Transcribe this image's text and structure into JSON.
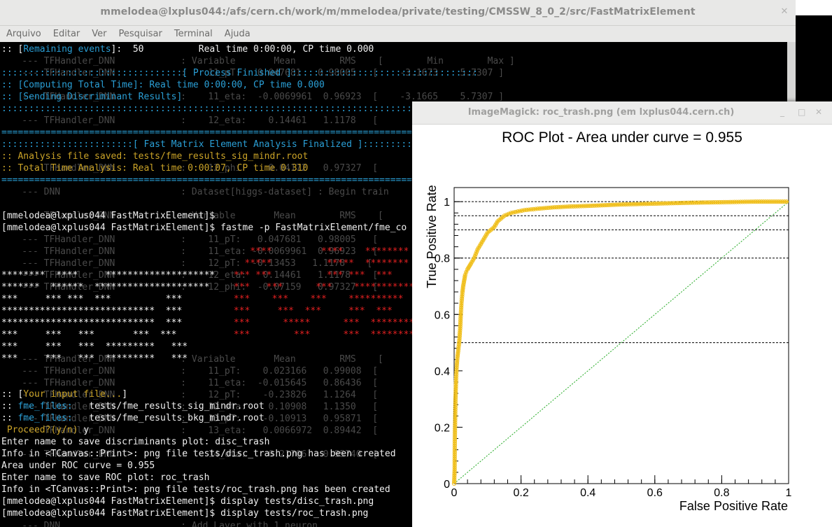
{
  "terminal": {
    "title": "mmelodea@lxplus044:/afs/cern.ch/work/m/mmelodea/private/testing/CMSSW_8_0_2/src/FastMatrixElement",
    "menu": [
      "Arquivo",
      "Editar",
      "Ver",
      "Pesquisar",
      "Terminal",
      "Ajuda"
    ],
    "lines": {
      "remaining_prefix": ":: [",
      "remaining_label": "Remaining events",
      "remaining_rest": "]:  50          Real time 0:00:00, CP time 0.000",
      "process_finished": ":::::::::::::::::::::::::::::::::[ Process Finished ]::::::::::::::::::::::::::::::::::",
      "computing": ":: [Computing Total Time]: Real time 0:00:00, CP time 0.000",
      "sending": ":: [Sending Discriminant Results]",
      "sep1": ":::::::::::::::::::::::::::::::::::::::::::::::::::::::::::::::::::::::::::::::::::::::::",
      "eq1": "=========================================================================================",
      "fme_finalized": "::::::::::::::::::::::::[ Fast Matrix Element Analysis Finalized ]:::::::::::::::::::::::",
      "analysis_saved": ":: Analysis file saved: tests/fme_results_sig_mindr.root",
      "total_time": ":: Total Time Analysis: Real time 0:00:07, CP time 0.310",
      "eq2": "=========================================================================================",
      "prompt1": "[mmelodea@lxplus044 FastMatrixElement]$",
      "prompt2": "[mmelodea@lxplus044 FastMatrixElement]$ fastme -p FastMatrixElement/fme_co",
      "input_prefix": ":: [",
      "input_label": "Your input file...",
      "input_suffix": "]",
      "fme_files_label": "fme_files:",
      "fme_file1": "   tests/fme_results_sig_mindr.root",
      "fme_file2": "   tests/fme_results_bkg_mindr.root",
      "proceed_label": " Proceed?(y/n)",
      "proceed_answer": " y",
      "enter_disc": "Enter name to save discriminants plot: disc_trash",
      "info_disc": "Info in <TCanvas::Print>: png file tests/disc_trash.png has been created",
      "area": "Area under ROC curve = 0.955",
      "enter_roc": "Enter name to save ROC plot: roc_trash",
      "info_roc": "Info in <TCanvas::Print>: png file tests/roc_trash.png has been created",
      "display1": "[mmelodea@lxplus044 FastMatrixElement]$ display tests/disc_trash.png",
      "display2": "[mmelodea@lxplus044 FastMatrixElement]$ display tests/roc_trash.png"
    },
    "banner_white": [
      "********  ****     ********************",
      "*******  ******  *********************",
      "***     *** ***  ***          ***",
      "****************************  ***",
      "****************************  ***",
      "***     ***   ***       ***  ***",
      "***     ***   ***  *********   ***",
      "***     ***   ***  *********   ***"
    ],
    "banner_red": [
      "    ****         ****    ********",
      "   *****          *****  ********",
      " *** ***          *** ***  ***",
      " ***   ***      ***    ***********",
      " ***    ***    ***    **********",
      " ***     ***  ***     ***  ***",
      " ***      *****      ***  ********",
      " ***        ***      ***  ********"
    ],
    "ghost_lines": [
      "    --- TFHandler_DNN            : Variable       Mean        RMS    [        Min        Max ]",
      "    --- TFHandler_DNN            :    11_pT:   0.047681   0.98005   [    -3.1673    5.7307 ]",
      "    --- TFHandler_DNN            :    11_eta:  -0.0069961  0.96923  [    -3.1665    5.7307 ]",
      "    --- TFHandler_DNN            :    12_eta:    0.14461   1.1178   [",
      "    --- TFHandler_DNN            :    12_phi:    0.04172   0.97327  [",
      "    --- DNN                      : Dataset[higgs-dataset] : Begin train",
      "    --- TFHandler_DNN            : Variable       Mean        RMS    [",
      "    --- TFHandler_DNN            :    11_pT:   0.047681   0.98005   [",
      "    --- TFHandler_DNN            :    11_eta: -0.0069961  0.96923   [",
      "    --- TFHandler_DNN            :    12_pT:  -0.13453   1.1178    [",
      "    --- TFHandler_DNN            :    12_eta:   0.14461   1.1178    [",
      "    --- TFHandler_DNN            :    12_phi:  -0.07159   0.97327   [",
      "    --- TFHandler_DNN            : Variable       Mean        RMS    [",
      "    --- TFHandler_DNN            :    11_pT:    0.023166   0.99008  [",
      "    --- TFHandler_DNN            :    11_eta:  -0.015645   0.86436  [",
      "    --- TFHandler_DNN            :    12_pT:    -0.23826   1.1264   [",
      "    --- TFHandler_DNN            :    12_eta:    0.10908   1.1350   [",
      "    --- TFHandler_DNN            :    13_pT:    -0.10913   0.95871  [",
      "    --- TFHandler_DNN            :    13_eta:   0.0066972  0.89442  [",
      "    --- TFHandler_DNN            :    14_eta:    0.21706   0.95740  [",
      "    --- DNN                      : Add Layer with 1 neuron"
    ]
  },
  "imagemagick": {
    "title": "ImageMagick: roc_trash.png (em lxplus044.cern.ch)",
    "colors": {
      "curve": "#f0c020",
      "diagonal": "#22aa22",
      "grid": "#000000"
    }
  },
  "chart_data": {
    "type": "line",
    "title": "ROC Plot - Area under curve = 0.955",
    "xlabel": "False Positive Rate",
    "ylabel": "True Positive Rate",
    "xlim": [
      0,
      1
    ],
    "ylim": [
      0,
      1.05
    ],
    "xticks": [
      "0",
      "0.2",
      "0.4",
      "0.6",
      "0.8",
      "1"
    ],
    "yticks": [
      "0",
      "0.2",
      "0.4",
      "0.6",
      "0.8",
      "1"
    ],
    "horizontal_reference_lines": [
      0.5,
      0.8,
      0.9,
      0.95,
      1.0
    ],
    "series": [
      {
        "x": [
          0,
          0.0015,
          0.002,
          0.004,
          0.006,
          0.008,
          0.01,
          0.012,
          0.015,
          0.018,
          0.02,
          0.022,
          0.025,
          0.027,
          0.03,
          0.033,
          0.036,
          0.04,
          0.045,
          0.05,
          0.06,
          0.07,
          0.08,
          0.09,
          0.1,
          0.11,
          0.12,
          0.13,
          0.14,
          0.15,
          0.17,
          0.19,
          0.21,
          0.25,
          0.3,
          0.35,
          0.4,
          0.5,
          0.6,
          0.7,
          0.8,
          0.9,
          1.0
        ],
        "y": [
          0,
          0.05,
          0.15,
          0.3,
          0.38,
          0.42,
          0.45,
          0.47,
          0.5,
          0.55,
          0.6,
          0.64,
          0.68,
          0.7,
          0.72,
          0.74,
          0.75,
          0.76,
          0.77,
          0.78,
          0.8,
          0.83,
          0.85,
          0.87,
          0.89,
          0.9,
          0.91,
          0.93,
          0.94,
          0.95,
          0.96,
          0.965,
          0.97,
          0.975,
          0.98,
          0.983,
          0.985,
          0.99,
          0.993,
          0.996,
          0.998,
          1.0,
          1.0
        ]
      },
      {
        "x": [
          0,
          1
        ],
        "y": [
          0,
          1
        ]
      }
    ]
  }
}
